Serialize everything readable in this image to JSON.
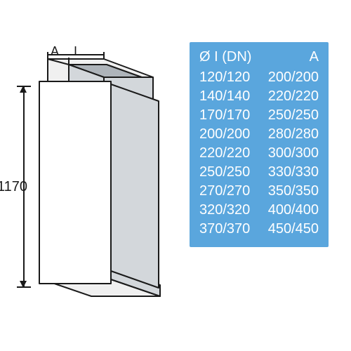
{
  "diagram": {
    "height_label": "1170",
    "dim_A_label": "A",
    "dim_I_label": "I",
    "colors": {
      "face_light": "#ffffff",
      "face_mid": "#f0f0f0",
      "face_shadow": "#d3d7db",
      "face_dark": "#aeb4ba",
      "outline": "#1a1a1a"
    }
  },
  "table": {
    "background": "#5aa6dd",
    "text_color": "#ffffff",
    "header_left": "Ø I (DN)",
    "header_right": "A",
    "rows": [
      {
        "dn": "120/120",
        "a": "200/200"
      },
      {
        "dn": "140/140",
        "a": "220/220"
      },
      {
        "dn": "170/170",
        "a": "250/250"
      },
      {
        "dn": "200/200",
        "a": "280/280"
      },
      {
        "dn": "220/220",
        "a": "300/300"
      },
      {
        "dn": "250/250",
        "a": "330/330"
      },
      {
        "dn": "270/270",
        "a": "350/350"
      },
      {
        "dn": "320/320",
        "a": "400/400"
      },
      {
        "dn": "370/370",
        "a": "450/450"
      }
    ]
  }
}
